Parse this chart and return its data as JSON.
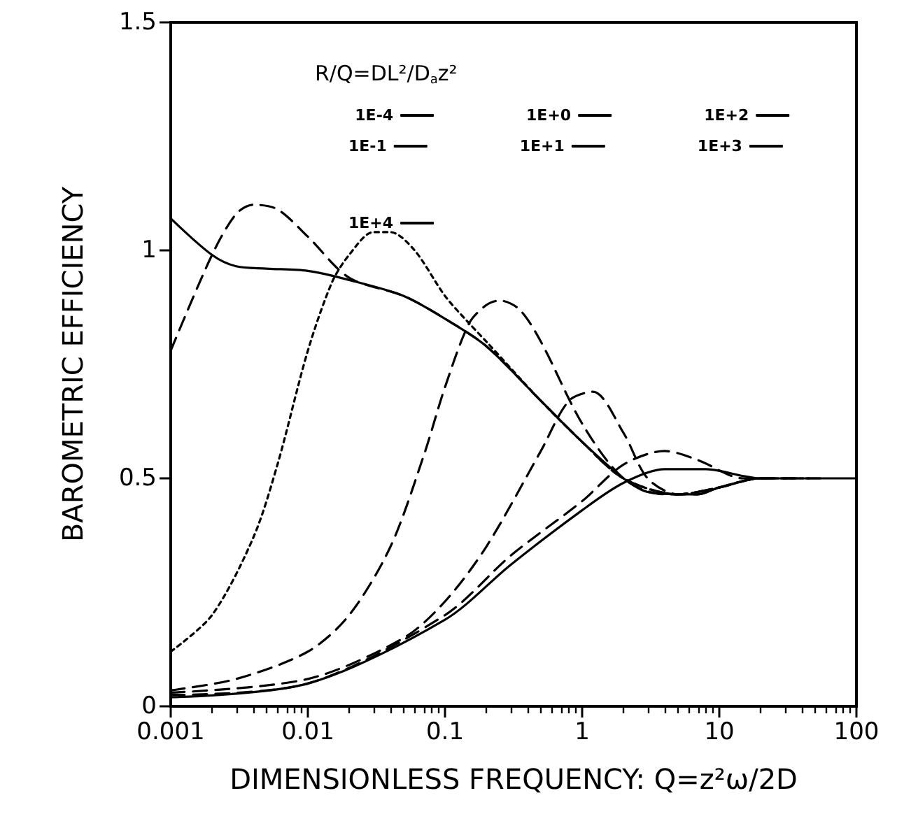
{
  "chart_data": {
    "type": "line",
    "xlabel": "DIMENSIONLESS FREQUENCY: Q=z²ω/2D",
    "ylabel": "BAROMETRIC EFFICIENCY",
    "legend_title": "R/Q=DL²/D$_{a}$z²",
    "log": "x",
    "grid": false,
    "legend": "top",
    "marker": "none",
    "xlim": [
      0.001,
      100
    ],
    "xticks": [
      0.001,
      0.01,
      0.1,
      1,
      10,
      100
    ],
    "ylim": [
      0,
      1.5
    ],
    "yticks": [
      0,
      0.5,
      1,
      1.5
    ],
    "series": [
      {
        "name": "1E-4",
        "color": "#000000",
        "line_style": "solid",
        "x": [
          0.001,
          0.002,
          0.003,
          0.005,
          0.01,
          0.02,
          0.05,
          0.1,
          0.2,
          0.5,
          1,
          2,
          3,
          5,
          7,
          10,
          20,
          100
        ],
        "values": [
          1.07,
          0.99,
          0.965,
          0.96,
          0.955,
          0.935,
          0.9,
          0.85,
          0.79,
          0.67,
          0.58,
          0.5,
          0.47,
          0.465,
          0.465,
          0.48,
          0.5,
          0.5
        ]
      },
      {
        "name": "1E-1",
        "color": "#000000",
        "line_style": "dashed",
        "x": [
          0.001,
          0.002,
          0.003,
          0.004,
          0.006,
          0.01,
          0.02,
          0.05,
          0.1,
          0.2,
          0.5,
          1,
          2,
          5,
          10,
          20,
          60
        ],
        "values": [
          0.78,
          0.99,
          1.08,
          1.1,
          1.09,
          1.03,
          0.94,
          0.9,
          0.85,
          0.79,
          0.67,
          0.58,
          0.5,
          0.465,
          0.48,
          0.5,
          0.5
        ]
      },
      {
        "name": "1E+0",
        "color": "#000000",
        "line_style": "dotted",
        "x": [
          0.001,
          0.002,
          0.004,
          0.006,
          0.01,
          0.015,
          0.02,
          0.03,
          0.04,
          0.06,
          0.1,
          0.15,
          0.2,
          0.5,
          1,
          2,
          5,
          10,
          20,
          45
        ],
        "values": [
          0.12,
          0.2,
          0.37,
          0.53,
          0.78,
          0.93,
          0.99,
          1.04,
          1.04,
          1.0,
          0.9,
          0.84,
          0.8,
          0.67,
          0.58,
          0.5,
          0.465,
          0.48,
          0.5,
          0.5
        ]
      },
      {
        "name": "1E+1",
        "color": "#000000",
        "line_style": "dashed",
        "x": [
          0.001,
          0.003,
          0.01,
          0.02,
          0.04,
          0.07,
          0.1,
          0.15,
          0.2,
          0.25,
          0.35,
          0.5,
          1,
          2,
          4,
          7,
          10,
          20,
          35
        ],
        "values": [
          0.035,
          0.06,
          0.12,
          0.2,
          0.35,
          0.55,
          0.7,
          0.84,
          0.88,
          0.89,
          0.87,
          0.8,
          0.62,
          0.5,
          0.465,
          0.465,
          0.48,
          0.5,
          0.5
        ]
      },
      {
        "name": "1E+2",
        "color": "#000000",
        "line_style": "dashed",
        "x": [
          0.001,
          0.01,
          0.05,
          0.1,
          0.2,
          0.5,
          0.8,
          1.2,
          2,
          3,
          5,
          10,
          20,
          28
        ],
        "values": [
          0.03,
          0.06,
          0.15,
          0.23,
          0.35,
          0.56,
          0.67,
          0.69,
          0.6,
          0.5,
          0.465,
          0.48,
          0.5,
          0.5
        ]
      },
      {
        "name": "1E+3",
        "color": "#000000",
        "line_style": "dashed",
        "x": [
          0.001,
          0.01,
          0.1,
          0.3,
          1,
          2,
          4,
          7,
          15,
          22
        ],
        "values": [
          0.025,
          0.05,
          0.2,
          0.33,
          0.45,
          0.53,
          0.56,
          0.54,
          0.5,
          0.5
        ]
      },
      {
        "name": "1E+4",
        "color": "#000000",
        "line_style": "solid",
        "x": [
          0.001,
          0.01,
          0.1,
          0.3,
          1,
          2,
          4,
          8,
          15,
          19
        ],
        "values": [
          0.02,
          0.05,
          0.19,
          0.31,
          0.43,
          0.49,
          0.52,
          0.52,
          0.505,
          0.5
        ]
      }
    ]
  }
}
